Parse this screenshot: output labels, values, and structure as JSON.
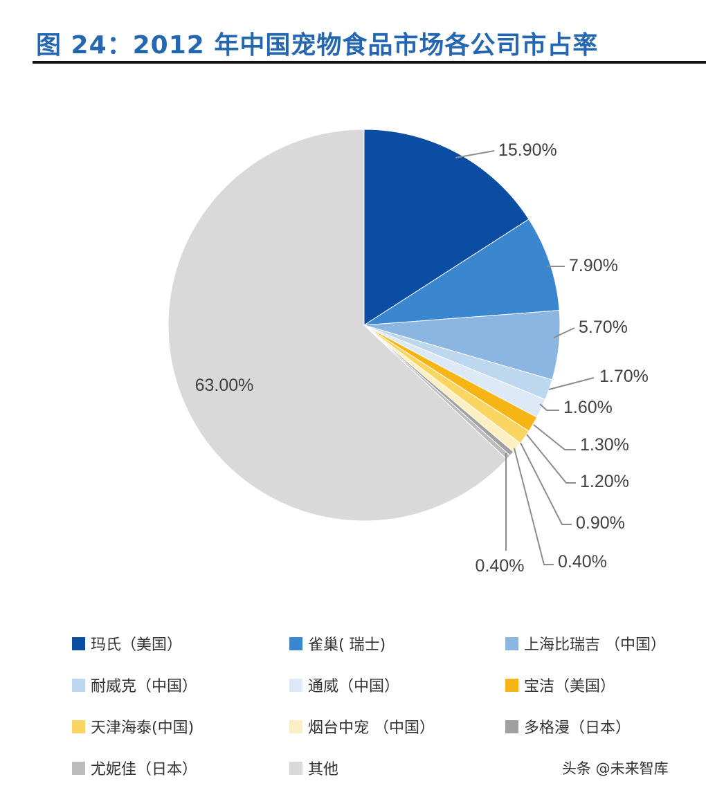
{
  "header": {
    "title": "图 24：2012 年中国宠物食品市场各公司市占率"
  },
  "chart_data": {
    "type": "pie",
    "title": "",
    "slices": [
      {
        "name": "玛氏（美国）",
        "value": 15.9,
        "label": "15.90%",
        "color": "#0b4da2"
      },
      {
        "name": "雀巢( 瑞士)",
        "value": 7.9,
        "label": "7.90%",
        "color": "#3a86cf"
      },
      {
        "name": "上海比瑞吉 （中国）",
        "value": 5.7,
        "label": "5.70%",
        "color": "#8bb6e2"
      },
      {
        "name": "耐威克（中国）",
        "value": 1.7,
        "label": "1.70%",
        "color": "#bdd7ef"
      },
      {
        "name": "通威（中国）",
        "value": 1.6,
        "label": "1.60%",
        "color": "#dde9f6"
      },
      {
        "name": "宝洁（美国）",
        "value": 1.3,
        "label": "1.30%",
        "color": "#f6b515"
      },
      {
        "name": "天津海泰(中国)",
        "value": 1.2,
        "label": "1.20%",
        "color": "#fbd561"
      },
      {
        "name": "烟台中宠 （中国）",
        "value": 0.9,
        "label": "0.90%",
        "color": "#fdefc4"
      },
      {
        "name": "多格漫（日本）",
        "value": 0.4,
        "label": "0.40%",
        "color": "#a0a0a0"
      },
      {
        "name": "尤妮佳（日本）",
        "value": 0.4,
        "label": "0.40%",
        "color": "#bcbcbc"
      },
      {
        "name": "其他",
        "value": 63.0,
        "label": "63.00%",
        "color": "#d9d9d9"
      }
    ],
    "legend_position": "bottom"
  },
  "watermark": {
    "text": "头条 @未来智库"
  }
}
